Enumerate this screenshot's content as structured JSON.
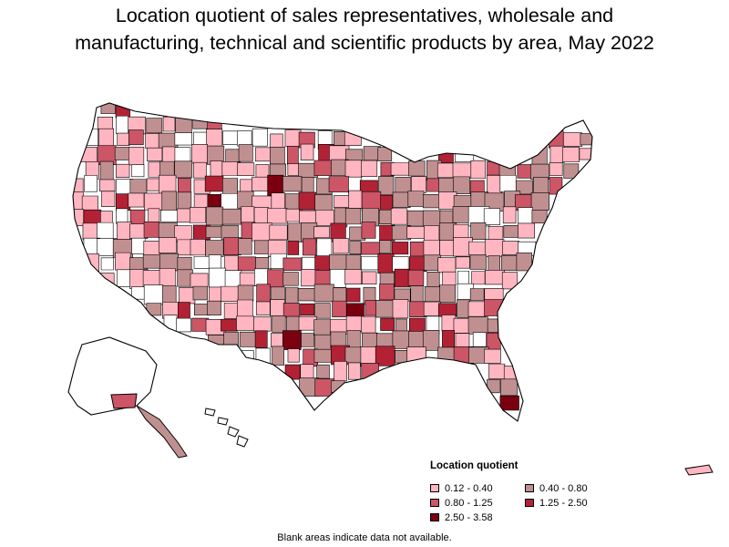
{
  "title": {
    "line1": "Location quotient of sales representatives, wholesale and",
    "line2": "manufacturing, technical and scientific products by area, May 2022"
  },
  "legend": {
    "title": "Location quotient",
    "items": [
      {
        "label": "0.12 - 0.40",
        "color": "#ffb6c1"
      },
      {
        "label": "0.40 - 0.80",
        "color": "#c09090"
      },
      {
        "label": "0.80 - 1.25",
        "color": "#cc5566"
      },
      {
        "label": "1.25 - 2.50",
        "color": "#b22234"
      },
      {
        "label": "2.50 - 3.58",
        "color": "#7a0010"
      }
    ]
  },
  "note": "Blank areas indicate data not available.",
  "colors": {
    "border": "#000000",
    "no_data": "#ffffff"
  }
}
